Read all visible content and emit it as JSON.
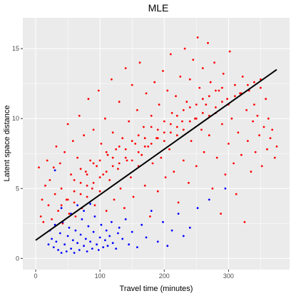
{
  "chart_data": {
    "type": "scatter",
    "title": "MLE",
    "xlabel": "Travel time (minutes)",
    "ylabel": "Latent space distance",
    "xlim": [
      -20,
      395
    ],
    "ylim": [
      -0.8,
      17.2
    ],
    "xticks": [
      0,
      100,
      200,
      300
    ],
    "yticks": [
      0,
      5,
      10,
      15
    ],
    "xtick_labels": [
      "0",
      "100",
      "200",
      "300"
    ],
    "ytick_labels": [
      "0",
      "5",
      "10",
      "15"
    ],
    "grid": true,
    "legend": "none",
    "panel_color": "#ebebeb",
    "series": [
      {
        "color": "#ff0000",
        "points": [
          [
            5,
            6.5
          ],
          [
            8,
            3.0
          ],
          [
            10,
            4.2
          ],
          [
            12,
            2.6
          ],
          [
            15,
            5.2
          ],
          [
            18,
            7.0
          ],
          [
            20,
            3.8
          ],
          [
            22,
            5.6
          ],
          [
            25,
            2.8
          ],
          [
            28,
            6.5
          ],
          [
            30,
            4.6
          ],
          [
            32,
            8.0
          ],
          [
            35,
            3.4
          ],
          [
            38,
            6.8
          ],
          [
            40,
            5.0
          ],
          [
            42,
            2.5
          ],
          [
            45,
            7.6
          ],
          [
            48,
            4.2
          ],
          [
            50,
            9.6
          ],
          [
            52,
            3.2
          ],
          [
            55,
            6.0
          ],
          [
            58,
            8.4
          ],
          [
            60,
            4.8
          ],
          [
            62,
            3.0
          ],
          [
            65,
            7.2
          ],
          [
            68,
            10.2
          ],
          [
            70,
            5.4
          ],
          [
            72,
            3.6
          ],
          [
            75,
            8.8
          ],
          [
            78,
            6.2
          ],
          [
            80,
            4.4
          ],
          [
            82,
            11.4
          ],
          [
            85,
            7.0
          ],
          [
            88,
            5.0
          ],
          [
            90,
            9.2
          ],
          [
            92,
            3.8
          ],
          [
            95,
            6.6
          ],
          [
            98,
            12.0
          ],
          [
            100,
            4.8
          ],
          [
            102,
            8.2
          ],
          [
            105,
            6.0
          ],
          [
            108,
            10.0
          ],
          [
            110,
            3.4
          ],
          [
            112,
            7.4
          ],
          [
            115,
            5.6
          ],
          [
            118,
            12.8
          ],
          [
            120,
            9.0
          ],
          [
            122,
            4.2
          ],
          [
            125,
            7.8
          ],
          [
            128,
            6.4
          ],
          [
            130,
            11.2
          ],
          [
            132,
            5.0
          ],
          [
            135,
            8.6
          ],
          [
            138,
            3.6
          ],
          [
            140,
            13.6
          ],
          [
            142,
            7.0
          ],
          [
            145,
            9.8
          ],
          [
            148,
            5.8
          ],
          [
            150,
            12.4
          ],
          [
            152,
            4.4
          ],
          [
            155,
            8.2
          ],
          [
            158,
            10.6
          ],
          [
            160,
            6.6
          ],
          [
            162,
            14.0
          ],
          [
            165,
            7.4
          ],
          [
            168,
            9.4
          ],
          [
            170,
            5.2
          ],
          [
            172,
            11.8
          ],
          [
            175,
            8.0
          ],
          [
            178,
            3.0
          ],
          [
            180,
            10.2
          ],
          [
            182,
            6.8
          ],
          [
            185,
            12.6
          ],
          [
            188,
            8.6
          ],
          [
            190,
            4.8
          ],
          [
            192,
            11.0
          ],
          [
            195,
            7.2
          ],
          [
            198,
            13.4
          ],
          [
            200,
            9.0
          ],
          [
            202,
            5.8
          ],
          [
            205,
            12.0
          ],
          [
            208,
            7.8
          ],
          [
            210,
            14.6
          ],
          [
            212,
            10.4
          ],
          [
            215,
            6.2
          ],
          [
            218,
            11.6
          ],
          [
            220,
            8.8
          ],
          [
            222,
            4.0
          ],
          [
            225,
            13.0
          ],
          [
            228,
            9.8
          ],
          [
            230,
            7.0
          ],
          [
            232,
            15.0
          ],
          [
            235,
            11.2
          ],
          [
            238,
            5.4
          ],
          [
            240,
            12.8
          ],
          [
            242,
            8.4
          ],
          [
            245,
            14.2
          ],
          [
            248,
            10.0
          ],
          [
            250,
            6.6
          ],
          [
            252,
            15.8
          ],
          [
            255,
            12.2
          ],
          [
            258,
            9.2
          ],
          [
            260,
            13.6
          ],
          [
            262,
            7.6
          ],
          [
            265,
            11.0
          ],
          [
            268,
            15.4
          ],
          [
            270,
            8.8
          ],
          [
            272,
            12.6
          ],
          [
            275,
            5.0
          ],
          [
            278,
            14.0
          ],
          [
            280,
            10.4
          ],
          [
            282,
            7.2
          ],
          [
            285,
            12.0
          ],
          [
            288,
            3.2
          ],
          [
            290,
            9.6
          ],
          [
            292,
            13.2
          ],
          [
            295,
            6.0
          ],
          [
            298,
            11.4
          ],
          [
            300,
            8.2
          ],
          [
            302,
            14.8
          ],
          [
            305,
            10.0
          ],
          [
            308,
            6.8
          ],
          [
            310,
            12.4
          ],
          [
            312,
            4.6
          ],
          [
            315,
            9.0
          ],
          [
            318,
            11.8
          ],
          [
            320,
            7.4
          ],
          [
            322,
            13.0
          ],
          [
            325,
            2.6
          ],
          [
            328,
            10.6
          ],
          [
            330,
            8.4
          ],
          [
            332,
            12.0
          ],
          [
            335,
            6.2
          ],
          [
            338,
            9.8
          ],
          [
            340,
            11.0
          ],
          [
            342,
            7.6
          ],
          [
            345,
            10.2
          ],
          [
            348,
            8.8
          ],
          [
            350,
            12.2
          ],
          [
            352,
            6.6
          ],
          [
            355,
            9.4
          ],
          [
            358,
            11.4
          ],
          [
            360,
            7.8
          ],
          [
            362,
            10.0
          ],
          [
            365,
            8.6
          ],
          [
            368,
            9.2
          ],
          [
            372,
            7.2
          ],
          [
            375,
            8.0
          ],
          [
            60,
            5.6
          ],
          [
            70,
            6.4
          ],
          [
            80,
            6.0
          ],
          [
            90,
            6.8
          ],
          [
            100,
            7.0
          ],
          [
            110,
            7.6
          ],
          [
            120,
            7.2
          ],
          [
            130,
            8.0
          ],
          [
            140,
            7.8
          ],
          [
            150,
            8.4
          ],
          [
            160,
            8.8
          ],
          [
            170,
            8.6
          ],
          [
            180,
            9.4
          ],
          [
            190,
            9.2
          ],
          [
            200,
            9.8
          ],
          [
            210,
            9.6
          ],
          [
            220,
            10.2
          ],
          [
            230,
            10.6
          ],
          [
            240,
            10.8
          ],
          [
            250,
            11.0
          ],
          [
            260,
            11.4
          ],
          [
            270,
            11.6
          ],
          [
            280,
            12.0
          ],
          [
            290,
            12.2
          ],
          [
            40,
            3.8
          ],
          [
            50,
            4.2
          ],
          [
            60,
            4.0
          ],
          [
            70,
            4.6
          ],
          [
            80,
            5.2
          ],
          [
            90,
            5.4
          ],
          [
            100,
            5.8
          ],
          [
            110,
            6.2
          ],
          [
            120,
            6.6
          ],
          [
            130,
            6.8
          ],
          [
            140,
            7.2
          ],
          [
            150,
            7.0
          ],
          [
            160,
            7.6
          ],
          [
            170,
            8.0
          ],
          [
            180,
            8.2
          ],
          [
            190,
            8.6
          ],
          [
            200,
            8.4
          ],
          [
            210,
            9.0
          ],
          [
            220,
            9.4
          ],
          [
            230,
            9.2
          ],
          [
            240,
            9.8
          ],
          [
            250,
            10.0
          ],
          [
            260,
            10.4
          ],
          [
            270,
            10.2
          ],
          [
            280,
            10.8
          ],
          [
            290,
            11.2
          ],
          [
            300,
            11.0
          ],
          [
            310,
            11.6
          ],
          [
            320,
            11.8
          ],
          [
            330,
            12.4
          ],
          [
            340,
            12.6
          ],
          [
            350,
            12.8
          ]
        ]
      },
      {
        "color": "#0000ff",
        "points": [
          [
            20,
            1.0
          ],
          [
            22,
            2.0
          ],
          [
            25,
            1.4
          ],
          [
            28,
            0.8
          ],
          [
            30,
            2.4
          ],
          [
            32,
            1.2
          ],
          [
            35,
            0.6
          ],
          [
            38,
            1.8
          ],
          [
            40,
            0.4
          ],
          [
            42,
            2.6
          ],
          [
            45,
            1.0
          ],
          [
            48,
            0.5
          ],
          [
            50,
            1.6
          ],
          [
            52,
            2.2
          ],
          [
            55,
            0.7
          ],
          [
            58,
            1.3
          ],
          [
            60,
            0.4
          ],
          [
            62,
            2.0
          ],
          [
            65,
            1.1
          ],
          [
            68,
            0.6
          ],
          [
            70,
            1.7
          ],
          [
            72,
            2.8
          ],
          [
            75,
            0.9
          ],
          [
            78,
            1.4
          ],
          [
            80,
            0.5
          ],
          [
            82,
            2.3
          ],
          [
            85,
            1.2
          ],
          [
            88,
            0.7
          ],
          [
            90,
            1.9
          ],
          [
            92,
            3.0
          ],
          [
            95,
            1.0
          ],
          [
            98,
            0.6
          ],
          [
            100,
            1.5
          ],
          [
            102,
            2.4
          ],
          [
            105,
            0.8
          ],
          [
            108,
            1.3
          ],
          [
            110,
            2.0
          ],
          [
            112,
            0.9
          ],
          [
            115,
            1.6
          ],
          [
            118,
            2.6
          ],
          [
            120,
            1.1
          ],
          [
            125,
            0.7
          ],
          [
            128,
            1.8
          ],
          [
            130,
            2.2
          ],
          [
            135,
            1.4
          ],
          [
            140,
            2.8
          ],
          [
            145,
            1.0
          ],
          [
            150,
            1.9
          ],
          [
            158,
            0.8
          ],
          [
            165,
            2.4
          ],
          [
            172,
            1.5
          ],
          [
            180,
            3.4
          ],
          [
            190,
            1.2
          ],
          [
            198,
            2.6
          ],
          [
            205,
            0.9
          ],
          [
            212,
            2.0
          ],
          [
            222,
            3.2
          ],
          [
            230,
            1.6
          ],
          [
            240,
            2.2
          ],
          [
            252,
            3.6
          ],
          [
            270,
            4.2
          ],
          [
            295,
            5.0
          ],
          [
            30,
            6.3
          ],
          [
            40,
            3.6
          ],
          [
            55,
            3.2
          ],
          [
            65,
            3.8
          ],
          [
            75,
            3.4
          ],
          [
            85,
            3.9
          ]
        ]
      }
    ],
    "fit_line": {
      "x": [
        0,
        375
      ],
      "y": [
        1.3,
        13.5
      ],
      "color": "#000000"
    }
  }
}
